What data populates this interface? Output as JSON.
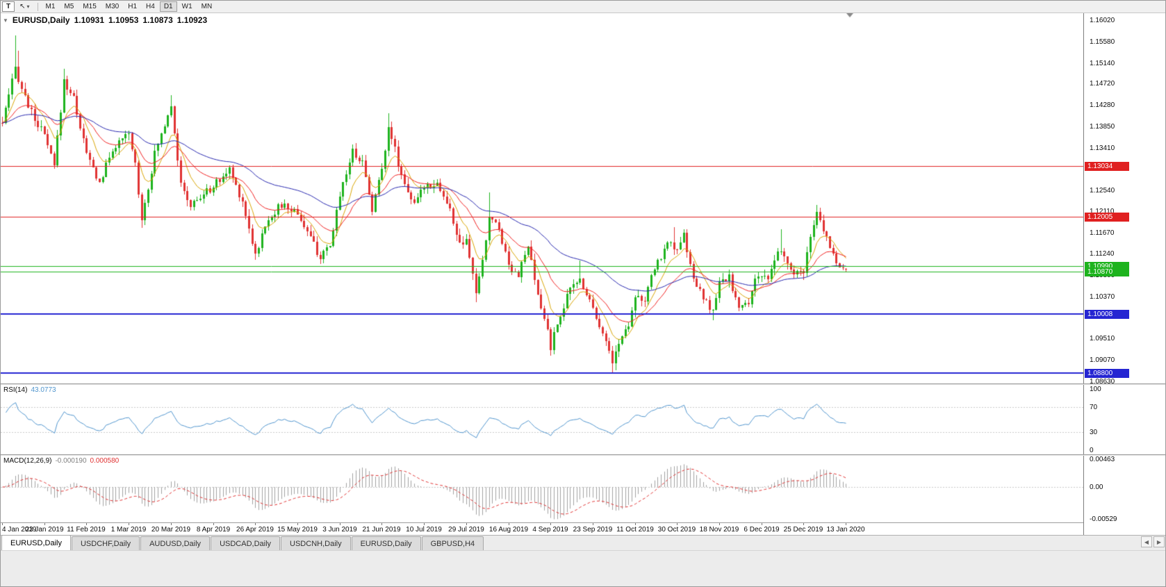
{
  "icons": {
    "cursor": "↖",
    "dropdown": "▾",
    "collapse": "▼",
    "tab_scroll_left": "◀",
    "tab_scroll_right": "▶"
  },
  "toolbar": {
    "t_label": "T",
    "timeframes": [
      {
        "label": "M1",
        "active": false
      },
      {
        "label": "M5",
        "active": false
      },
      {
        "label": "M15",
        "active": false
      },
      {
        "label": "M30",
        "active": false
      },
      {
        "label": "H1",
        "active": false
      },
      {
        "label": "H4",
        "active": false
      },
      {
        "label": "D1",
        "active": true
      },
      {
        "label": "W1",
        "active": false
      },
      {
        "label": "MN",
        "active": false
      }
    ]
  },
  "chart": {
    "symbol_label": "EURUSD,Daily",
    "ohlc": {
      "open": "1.10931",
      "high": "1.10953",
      "low": "1.10873",
      "close": "1.10923"
    },
    "colors": {
      "up": "#1db31d",
      "down": "#e03232",
      "background": "#ffffff"
    },
    "price_ticks": [
      "1.16020",
      "1.15580",
      "1.15140",
      "1.14720",
      "1.14280",
      "1.13850",
      "1.13410",
      "1.12980",
      "1.12540",
      "1.12110",
      "1.11670",
      "1.11240",
      "1.10800",
      "1.10370",
      "1.09950",
      "1.09510",
      "1.09070",
      "1.08630"
    ],
    "hlines": [
      {
        "price": 1.13034,
        "label": "1.13034",
        "color": "#e02020",
        "width": 1
      },
      {
        "price": 1.12005,
        "label": "1.12005",
        "color": "#e02020",
        "width": 1
      },
      {
        "price": 1.1099,
        "label": "1.10990",
        "color": "#1db31d",
        "width": 1
      },
      {
        "price": 1.1087,
        "label": "1.10870",
        "color": "#1db31d",
        "width": 1
      },
      {
        "price": 1.10008,
        "label": "1.10008",
        "color": "#2525d2",
        "width": 2
      },
      {
        "price": 1.088,
        "label": "1.08800",
        "color": "#2525d2",
        "width": 2
      }
    ]
  },
  "chart_data": {
    "type": "candlestick",
    "symbol": "EURUSD",
    "timeframe": "Daily",
    "y_range": [
      1.0859,
      1.1616
    ],
    "bar_count": 261,
    "bar_spacing": 4.67,
    "bars_per_label": 13,
    "x_labels": [
      "4 Jan 2019",
      "23 Jan 2019",
      "11 Feb 2019",
      "1 Mar 2019",
      "20 Mar 2019",
      "8 Apr 2019",
      "26 Apr 2019",
      "15 May 2019",
      "3 Jun 2019",
      "21 Jun 2019",
      "10 Jul 2019",
      "29 Jul 2019",
      "16 Aug 2019",
      "4 Sep 2019",
      "23 Sep 2019",
      "11 Oct 2019",
      "30 Oct 2019",
      "18 Nov 2019",
      "6 Dec 2019",
      "25 Dec 2019",
      "13 Jan 2020"
    ],
    "close_anchors": [
      [
        0,
        1.1392
      ],
      [
        2,
        1.1445
      ],
      [
        4,
        1.1505
      ],
      [
        6,
        1.1462
      ],
      [
        9,
        1.1412
      ],
      [
        13,
        1.1365
      ],
      [
        16,
        1.1302
      ],
      [
        19,
        1.1478
      ],
      [
        22,
        1.1442
      ],
      [
        26,
        1.1328
      ],
      [
        30,
        1.1268
      ],
      [
        34,
        1.1338
      ],
      [
        39,
        1.1368
      ],
      [
        41,
        1.1308
      ],
      [
        43,
        1.1196
      ],
      [
        47,
        1.1328
      ],
      [
        52,
        1.1432
      ],
      [
        55,
        1.1262
      ],
      [
        58,
        1.1222
      ],
      [
        62,
        1.1246
      ],
      [
        65,
        1.1262
      ],
      [
        70,
        1.1296
      ],
      [
        74,
        1.1232
      ],
      [
        78,
        1.1122
      ],
      [
        82,
        1.1198
      ],
      [
        86,
        1.1224
      ],
      [
        91,
        1.1208
      ],
      [
        95,
        1.1156
      ],
      [
        98,
        1.1116
      ],
      [
        101,
        1.1136
      ],
      [
        104,
        1.1248
      ],
      [
        108,
        1.1334
      ],
      [
        111,
        1.1312
      ],
      [
        114,
        1.1216
      ],
      [
        117,
        1.1298
      ],
      [
        119,
        1.1388
      ],
      [
        123,
        1.1286
      ],
      [
        127,
        1.1222
      ],
      [
        130,
        1.1264
      ],
      [
        134,
        1.127
      ],
      [
        138,
        1.1212
      ],
      [
        141,
        1.1142
      ],
      [
        143,
        1.1146
      ],
      [
        145,
        1.1082
      ],
      [
        146,
        1.1046
      ],
      [
        148,
        1.1106
      ],
      [
        150,
        1.1202
      ],
      [
        153,
        1.1176
      ],
      [
        156,
        1.1102
      ],
      [
        159,
        1.1082
      ],
      [
        162,
        1.114
      ],
      [
        165,
        1.1036
      ],
      [
        168,
        1.0968
      ],
      [
        169,
        1.0934
      ],
      [
        172,
        1.1002
      ],
      [
        175,
        1.1052
      ],
      [
        178,
        1.1072
      ],
      [
        182,
        1.1016
      ],
      [
        185,
        1.0962
      ],
      [
        188,
        1.0906
      ],
      [
        191,
        1.0956
      ],
      [
        193,
        1.0982
      ],
      [
        195,
        1.1042
      ],
      [
        198,
        1.1026
      ],
      [
        201,
        1.1096
      ],
      [
        204,
        1.1132
      ],
      [
        206,
        1.1152
      ],
      [
        208,
        1.1126
      ],
      [
        210,
        1.1162
      ],
      [
        213,
        1.1072
      ],
      [
        216,
        1.1032
      ],
      [
        219,
        1.1006
      ],
      [
        221,
        1.1062
      ],
      [
        224,
        1.1076
      ],
      [
        227,
        1.1012
      ],
      [
        230,
        1.1022
      ],
      [
        232,
        1.1078
      ],
      [
        234,
        1.108
      ],
      [
        236,
        1.1066
      ],
      [
        239,
        1.113
      ],
      [
        241,
        1.1118
      ],
      [
        244,
        1.1078
      ],
      [
        247,
        1.1092
      ],
      [
        249,
        1.1152
      ],
      [
        251,
        1.1208
      ],
      [
        253,
        1.1172
      ],
      [
        255,
        1.1142
      ],
      [
        257,
        1.1108
      ],
      [
        259,
        1.1096
      ],
      [
        260,
        1.10923
      ]
    ],
    "spike_high": [
      [
        4,
        1.157
      ],
      [
        5,
        1.154
      ],
      [
        19,
        1.1502
      ],
      [
        52,
        1.1448
      ],
      [
        108,
        1.1348
      ],
      [
        119,
        1.1412
      ],
      [
        150,
        1.125
      ],
      [
        178,
        1.111
      ],
      [
        207,
        1.1179
      ],
      [
        210,
        1.1175
      ],
      [
        240,
        1.1175
      ],
      [
        251,
        1.1224
      ]
    ],
    "spike_low": [
      [
        43,
        1.1177
      ],
      [
        78,
        1.1111
      ],
      [
        98,
        1.1107
      ],
      [
        146,
        1.1026
      ],
      [
        169,
        1.0926
      ],
      [
        188,
        1.0879
      ],
      [
        219,
        1.0989
      ]
    ],
    "moving_averages": [
      {
        "period": 8,
        "color": "#d8a400"
      },
      {
        "period": 21,
        "color": "#f02020"
      },
      {
        "period": 55,
        "color": "#2626ae"
      }
    ]
  },
  "rsi": {
    "name": "RSI(14)",
    "value": "43.0773",
    "period": 14,
    "color": "#4f94cd",
    "levels": [
      {
        "v": 100,
        "label": "100"
      },
      {
        "v": 70,
        "label": "70"
      },
      {
        "v": 30,
        "label": "30"
      },
      {
        "v": 0,
        "label": "0"
      }
    ],
    "dotted_levels": [
      70,
      30
    ]
  },
  "macd": {
    "name": "MACD(12,26,9)",
    "value_main": "-0.000190",
    "value_signal": "0.000580",
    "fast": 12,
    "slow": 26,
    "signal": 9,
    "hist_color": "#a0a0a0",
    "signal_color": "#e03232",
    "range": [
      -0.00529,
      0.00463
    ],
    "scale": [
      {
        "v": 0.00463,
        "label": "0.00463"
      },
      {
        "v": 0,
        "label": "0.00"
      },
      {
        "v": -0.00529,
        "label": "-0.00529"
      }
    ]
  },
  "tabs": [
    {
      "label": "EURUSD,Daily",
      "active": true
    },
    {
      "label": "USDCHF,Daily",
      "active": false
    },
    {
      "label": "AUDUSD,Daily",
      "active": false
    },
    {
      "label": "USDCAD,Daily",
      "active": false
    },
    {
      "label": "USDCNH,Daily",
      "active": false
    },
    {
      "label": "EURUSD,Daily",
      "active": false
    },
    {
      "label": "GBPUSD,H4",
      "active": false
    }
  ]
}
